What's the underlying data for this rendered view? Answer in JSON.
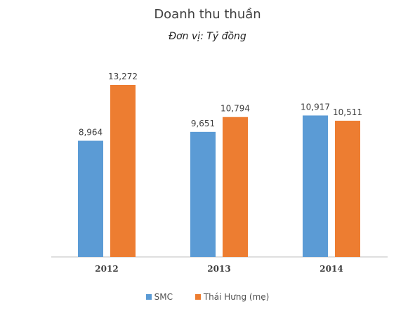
{
  "chart_data": {
    "type": "bar",
    "title": "Doanh thu thuần",
    "subtitle": "Đơn vị: Tỷ đồng",
    "categories": [
      "2012",
      "2013",
      "2014"
    ],
    "series": [
      {
        "name": "SMC",
        "values": [
          8964,
          9651,
          10917
        ],
        "labels": [
          "8,964",
          "9,651",
          "10,917"
        ],
        "color": "#5b9bd5"
      },
      {
        "name": "Thái Hưng (mẹ)",
        "values": [
          13272,
          10794,
          10511
        ],
        "labels": [
          "13,272",
          "10,794",
          "10,511"
        ],
        "color": "#ed7d31"
      }
    ],
    "ylim": [
      0,
      14000
    ],
    "grid": false,
    "legend_position": "bottom"
  }
}
